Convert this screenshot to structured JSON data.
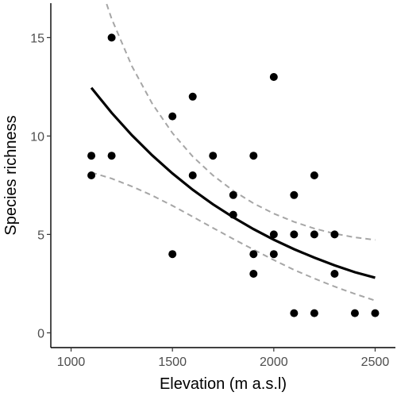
{
  "chart_data": {
    "type": "scatter",
    "xlabel": "Elevation (m a.s.l)",
    "ylabel": "Species richness",
    "xlim": [
      900,
      2600
    ],
    "ylim": [
      -0.75,
      16.75
    ],
    "xticks": [
      1000,
      1500,
      2000,
      2500
    ],
    "yticks": [
      0,
      5,
      10,
      15
    ],
    "grid": false,
    "points": [
      {
        "x": 1100,
        "y": 9
      },
      {
        "x": 1100,
        "y": 8
      },
      {
        "x": 1200,
        "y": 15
      },
      {
        "x": 1200,
        "y": 9
      },
      {
        "x": 1500,
        "y": 11
      },
      {
        "x": 1500,
        "y": 4
      },
      {
        "x": 1600,
        "y": 12
      },
      {
        "x": 1600,
        "y": 8
      },
      {
        "x": 1700,
        "y": 9
      },
      {
        "x": 1800,
        "y": 7
      },
      {
        "x": 1800,
        "y": 6
      },
      {
        "x": 1900,
        "y": 9
      },
      {
        "x": 1900,
        "y": 4
      },
      {
        "x": 1900,
        "y": 3
      },
      {
        "x": 2000,
        "y": 13
      },
      {
        "x": 2000,
        "y": 5
      },
      {
        "x": 2000,
        "y": 4
      },
      {
        "x": 2100,
        "y": 7
      },
      {
        "x": 2100,
        "y": 5
      },
      {
        "x": 2100,
        "y": 1
      },
      {
        "x": 2200,
        "y": 8
      },
      {
        "x": 2200,
        "y": 5
      },
      {
        "x": 2200,
        "y": 1
      },
      {
        "x": 2300,
        "y": 5
      },
      {
        "x": 2300,
        "y": 3
      },
      {
        "x": 2400,
        "y": 1
      },
      {
        "x": 2500,
        "y": 1
      }
    ],
    "fit": {
      "x": [
        1100,
        1200,
        1300,
        1400,
        1500,
        1600,
        1700,
        1800,
        1900,
        2000,
        2100,
        2200,
        2300,
        2400,
        2500
      ],
      "y": [
        12.45,
        11.18,
        10.04,
        9.02,
        8.1,
        7.27,
        6.53,
        5.87,
        5.27,
        4.73,
        4.25,
        3.82,
        3.43,
        3.08,
        2.8
      ]
    },
    "ci_upper": {
      "x": [
        1100,
        1200,
        1300,
        1400,
        1500,
        1600,
        1700,
        1800,
        1900,
        2000,
        2100,
        2200,
        2300,
        2400,
        2500
      ],
      "y": [
        19.0,
        15.96,
        13.55,
        11.65,
        10.15,
        8.96,
        8.0,
        7.22,
        6.58,
        6.06,
        5.64,
        5.3,
        5.04,
        4.85,
        4.72
      ]
    },
    "ci_lower": {
      "x": [
        1100,
        1200,
        1300,
        1400,
        1500,
        1600,
        1700,
        1800,
        1900,
        2000,
        2100,
        2200,
        2300,
        2400,
        2500
      ],
      "y": [
        8.15,
        7.84,
        7.44,
        6.98,
        6.46,
        5.9,
        5.33,
        4.77,
        4.23,
        3.7,
        3.2,
        2.76,
        2.35,
        1.98,
        1.64
      ]
    },
    "colors": {
      "points": "#000000",
      "fit": "#000000",
      "ci": "#a6a6a6",
      "axis": "#000000"
    }
  }
}
